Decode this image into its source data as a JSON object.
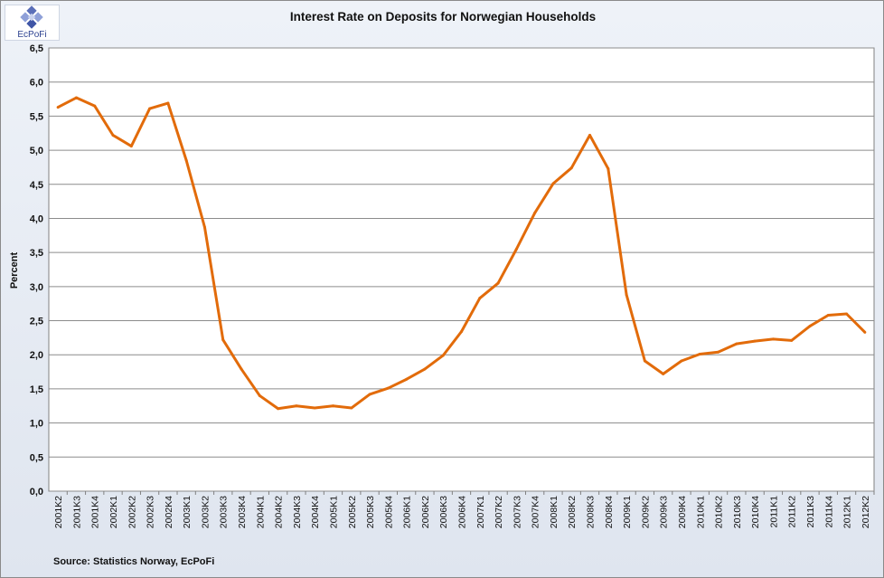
{
  "logo": {
    "text": "EcPoFi"
  },
  "chart_data": {
    "type": "line",
    "title": "Interest Rate on Deposits for Norwegian Households",
    "ylabel": "Percent",
    "xlabel": "",
    "source": "Source: Statistics  Norway, EcPoFi",
    "ylim": [
      0,
      6.5
    ],
    "yticks": [
      "0,0",
      "0,5",
      "1,0",
      "1,5",
      "2,0",
      "2,5",
      "3,0",
      "3,5",
      "4,0",
      "4,5",
      "5,0",
      "5,5",
      "6,0",
      "6,5"
    ],
    "grid": true,
    "color": "#e26b0a",
    "categories": [
      "2001K2",
      "2001K3",
      "2001K4",
      "2002K1",
      "2002K2",
      "2002K3",
      "2002K4",
      "2003K1",
      "2003K2",
      "2003K3",
      "2003K4",
      "2004K1",
      "2004K2",
      "2004K3",
      "2004K4",
      "2005K1",
      "2005K2",
      "2005K3",
      "2005K4",
      "2006K1",
      "2006K2",
      "2006K3",
      "2006K4",
      "2007K1",
      "2007K2",
      "2007K3",
      "2007K4",
      "2008K1",
      "2008K2",
      "2008K3",
      "2008K4",
      "2009K1",
      "2009K2",
      "2009K3",
      "2009K4",
      "2010K1",
      "2010K2",
      "2010K3",
      "2010K4",
      "2011K1",
      "2011K2",
      "2011K3",
      "2011K4",
      "2012K1",
      "2012K2"
    ],
    "values": [
      5.63,
      5.77,
      5.65,
      5.22,
      5.06,
      5.61,
      5.69,
      4.85,
      3.87,
      2.22,
      1.79,
      1.4,
      1.21,
      1.25,
      1.22,
      1.25,
      1.22,
      1.42,
      1.51,
      1.64,
      1.79,
      1.99,
      2.34,
      2.83,
      3.05,
      3.55,
      4.08,
      4.51,
      4.74,
      5.22,
      4.73,
      2.88,
      1.91,
      1.72,
      1.91,
      2.01,
      2.04,
      2.16,
      2.2,
      2.23,
      2.21,
      2.42,
      2.58,
      2.6,
      2.33
    ]
  }
}
